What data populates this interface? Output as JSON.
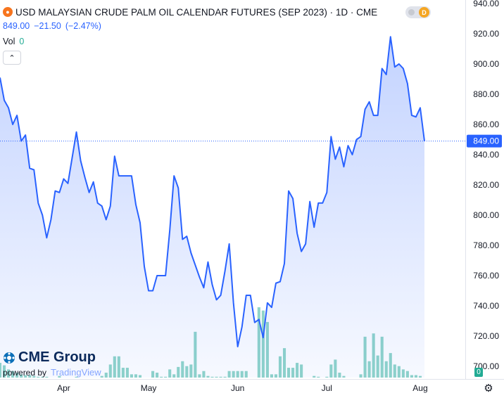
{
  "legend": {
    "symbol_icon": "flame-icon",
    "title": "USD MALAYSIAN CRUDE PALM OIL CALENDAR FUTURES (SEP 2023) · 1D · CME",
    "last_price": "849.00",
    "change": "−21.50",
    "change_pct": "(−2.47%)",
    "vol_label": "Vol",
    "vol_value": "0",
    "collapse_icon": "chevron-up-icon"
  },
  "toggle": {
    "label": "D"
  },
  "brand": {
    "name": "CME Group",
    "powered_by": "powered by",
    "platform": "TradingView"
  },
  "current_price_label": "849.00",
  "volume_axis_label": "0",
  "settings_icon": "gear-icon",
  "colors": {
    "line": "#2962ff",
    "area": "#2962ff",
    "volume": "#22ab94",
    "text": "#131722",
    "badge": "#2962ff"
  },
  "chart_data": {
    "type": "area",
    "title": "USD MALAYSIAN CRUDE PALM OIL CALENDAR FUTURES (SEP 2023)",
    "interval": "1D",
    "exchange": "CME",
    "ylim": [
      700,
      940
    ],
    "y_ticks": [
      700,
      720,
      740,
      760,
      780,
      800,
      820,
      840,
      860,
      880,
      900,
      920,
      940
    ],
    "x_labels": [
      {
        "label": "Apr",
        "index": 15
      },
      {
        "label": "May",
        "index": 35
      },
      {
        "label": "Jun",
        "index": 56
      },
      {
        "label": "Jul",
        "index": 77
      },
      {
        "label": "Aug",
        "index": 99
      }
    ],
    "last_value": 849,
    "grid": false,
    "series": [
      {
        "values": [
          891,
          876,
          871,
          860,
          866,
          849,
          853,
          831,
          830,
          808,
          800,
          785,
          797,
          816,
          815,
          824,
          821,
          838,
          855,
          836,
          825,
          815,
          822,
          808,
          806,
          797,
          806,
          839,
          826,
          826,
          826,
          826,
          807,
          795,
          766,
          750,
          750,
          760,
          760,
          760,
          790,
          826,
          818,
          784,
          786,
          775,
          767,
          759,
          752,
          769,
          754,
          744,
          747,
          763,
          781,
          742,
          713,
          726,
          747,
          747,
          729,
          731,
          719,
          742,
          739,
          755,
          756,
          768,
          816,
          811,
          788,
          776,
          781,
          809,
          792,
          808,
          808,
          815,
          852,
          837,
          845,
          832,
          846,
          840,
          850,
          852,
          870,
          875,
          866,
          866,
          897,
          893,
          918,
          898,
          900,
          897,
          887,
          866,
          865,
          871,
          849
        ],
        "volume": [
          18,
          15,
          10,
          8,
          6,
          4,
          3,
          3,
          2,
          1,
          1,
          1,
          0,
          0,
          2,
          0,
          0,
          0,
          1,
          0,
          0,
          0,
          0,
          0,
          2,
          6,
          16,
          26,
          26,
          12,
          12,
          4,
          4,
          3,
          0,
          0,
          8,
          6,
          1,
          1,
          10,
          4,
          13,
          20,
          14,
          16,
          56,
          4,
          8,
          2,
          1,
          1,
          1,
          1,
          8,
          8,
          8,
          8,
          8,
          0,
          0,
          86,
          82,
          68,
          4,
          4,
          26,
          36,
          12,
          12,
          18,
          16,
          0,
          0,
          2,
          1,
          0,
          1,
          16,
          22,
          6,
          2,
          0,
          0,
          0,
          4,
          50,
          20,
          54,
          27,
          50,
          20,
          30,
          16,
          14,
          10,
          8,
          3,
          3,
          2,
          0
        ]
      }
    ]
  }
}
